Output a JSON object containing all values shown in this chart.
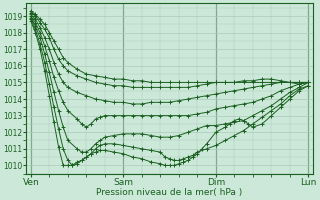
{
  "bg_color": "#cce8d8",
  "grid_color": "#aacabb",
  "line_color": "#1a6020",
  "xlabel": "Pression niveau de la mer( hPa )",
  "xtick_labels": [
    "Ven",
    "Sam",
    "Dim",
    "Lun"
  ],
  "xtick_positions": [
    0.0,
    1.0,
    2.0,
    3.0
  ],
  "ylim": [
    1009.5,
    1019.8
  ],
  "yticks": [
    1010,
    1011,
    1012,
    1013,
    1014,
    1015,
    1016,
    1017,
    1018,
    1019
  ],
  "series": [
    {
      "pts": [
        [
          0,
          1019.3
        ],
        [
          0.05,
          1019.1
        ],
        [
          0.1,
          1018.8
        ],
        [
          0.15,
          1018.5
        ],
        [
          0.2,
          1018.0
        ],
        [
          0.25,
          1017.5
        ],
        [
          0.3,
          1017.0
        ],
        [
          0.35,
          1016.5
        ],
        [
          0.4,
          1016.2
        ],
        [
          0.5,
          1015.8
        ],
        [
          0.6,
          1015.5
        ],
        [
          0.7,
          1015.4
        ],
        [
          0.8,
          1015.3
        ],
        [
          0.9,
          1015.2
        ],
        [
          1.0,
          1015.2
        ],
        [
          1.1,
          1015.1
        ],
        [
          1.2,
          1015.1
        ],
        [
          1.3,
          1015.0
        ],
        [
          1.4,
          1015.0
        ],
        [
          1.5,
          1015.0
        ],
        [
          1.6,
          1015.0
        ],
        [
          1.7,
          1015.0
        ],
        [
          1.8,
          1015.0
        ],
        [
          1.9,
          1015.0
        ],
        [
          2.0,
          1015.0
        ],
        [
          2.1,
          1015.0
        ],
        [
          2.2,
          1015.0
        ],
        [
          2.3,
          1015.1
        ],
        [
          2.4,
          1015.1
        ],
        [
          2.5,
          1015.2
        ],
        [
          2.6,
          1015.2
        ],
        [
          2.7,
          1015.1
        ],
        [
          2.8,
          1015.0
        ],
        [
          2.9,
          1014.9
        ],
        [
          3.0,
          1015.0
        ]
      ]
    },
    {
      "pts": [
        [
          0,
          1019.2
        ],
        [
          0.05,
          1019.0
        ],
        [
          0.1,
          1018.6
        ],
        [
          0.15,
          1018.2
        ],
        [
          0.2,
          1017.7
        ],
        [
          0.25,
          1017.0
        ],
        [
          0.3,
          1016.4
        ],
        [
          0.35,
          1016.0
        ],
        [
          0.4,
          1015.7
        ],
        [
          0.5,
          1015.4
        ],
        [
          0.6,
          1015.2
        ],
        [
          0.7,
          1015.0
        ],
        [
          0.8,
          1014.9
        ],
        [
          0.9,
          1014.8
        ],
        [
          1.0,
          1014.8
        ],
        [
          1.1,
          1014.7
        ],
        [
          1.2,
          1014.7
        ],
        [
          1.3,
          1014.7
        ],
        [
          1.4,
          1014.7
        ],
        [
          1.5,
          1014.7
        ],
        [
          1.6,
          1014.7
        ],
        [
          1.7,
          1014.7
        ],
        [
          1.8,
          1014.8
        ],
        [
          1.9,
          1014.9
        ],
        [
          2.0,
          1015.0
        ],
        [
          2.1,
          1015.0
        ],
        [
          2.2,
          1015.0
        ],
        [
          2.3,
          1015.0
        ],
        [
          2.4,
          1015.0
        ],
        [
          2.5,
          1015.0
        ],
        [
          2.6,
          1015.0
        ],
        [
          2.7,
          1015.0
        ],
        [
          2.8,
          1015.0
        ],
        [
          2.9,
          1015.0
        ],
        [
          3.0,
          1015.0
        ]
      ]
    },
    {
      "pts": [
        [
          0,
          1019.1
        ],
        [
          0.05,
          1018.8
        ],
        [
          0.1,
          1018.3
        ],
        [
          0.15,
          1017.7
        ],
        [
          0.2,
          1017.0
        ],
        [
          0.25,
          1016.2
        ],
        [
          0.3,
          1015.5
        ],
        [
          0.35,
          1015.0
        ],
        [
          0.4,
          1014.7
        ],
        [
          0.5,
          1014.4
        ],
        [
          0.6,
          1014.2
        ],
        [
          0.7,
          1014.0
        ],
        [
          0.8,
          1013.9
        ],
        [
          0.9,
          1013.8
        ],
        [
          1.0,
          1013.8
        ],
        [
          1.1,
          1013.7
        ],
        [
          1.2,
          1013.7
        ],
        [
          1.3,
          1013.8
        ],
        [
          1.4,
          1013.8
        ],
        [
          1.5,
          1013.8
        ],
        [
          1.6,
          1013.9
        ],
        [
          1.7,
          1014.0
        ],
        [
          1.8,
          1014.1
        ],
        [
          1.9,
          1014.2
        ],
        [
          2.0,
          1014.3
        ],
        [
          2.1,
          1014.4
        ],
        [
          2.2,
          1014.5
        ],
        [
          2.3,
          1014.6
        ],
        [
          2.4,
          1014.7
        ],
        [
          2.5,
          1014.8
        ],
        [
          2.6,
          1014.9
        ],
        [
          2.7,
          1015.0
        ],
        [
          2.8,
          1015.0
        ],
        [
          2.9,
          1015.0
        ],
        [
          3.0,
          1015.0
        ]
      ]
    },
    {
      "pts": [
        [
          0,
          1019.0
        ],
        [
          0.05,
          1018.6
        ],
        [
          0.1,
          1018.0
        ],
        [
          0.15,
          1017.2
        ],
        [
          0.2,
          1016.3
        ],
        [
          0.25,
          1015.3
        ],
        [
          0.3,
          1014.5
        ],
        [
          0.35,
          1013.8
        ],
        [
          0.4,
          1013.3
        ],
        [
          0.5,
          1012.8
        ],
        [
          0.55,
          1012.5
        ],
        [
          0.6,
          1012.3
        ],
        [
          0.65,
          1012.5
        ],
        [
          0.7,
          1012.8
        ],
        [
          0.75,
          1012.9
        ],
        [
          0.8,
          1013.0
        ],
        [
          0.9,
          1013.0
        ],
        [
          1.0,
          1013.0
        ],
        [
          1.1,
          1013.0
        ],
        [
          1.2,
          1013.0
        ],
        [
          1.3,
          1013.0
        ],
        [
          1.4,
          1013.0
        ],
        [
          1.5,
          1013.0
        ],
        [
          1.6,
          1013.0
        ],
        [
          1.7,
          1013.0
        ],
        [
          1.8,
          1013.1
        ],
        [
          1.9,
          1013.2
        ],
        [
          2.0,
          1013.4
        ],
        [
          2.1,
          1013.5
        ],
        [
          2.2,
          1013.6
        ],
        [
          2.3,
          1013.7
        ],
        [
          2.4,
          1013.8
        ],
        [
          2.5,
          1014.0
        ],
        [
          2.6,
          1014.2
        ],
        [
          2.7,
          1014.5
        ],
        [
          2.8,
          1014.7
        ],
        [
          2.9,
          1014.9
        ],
        [
          3.0,
          1015.0
        ]
      ]
    },
    {
      "pts": [
        [
          0,
          1018.9
        ],
        [
          0.05,
          1018.4
        ],
        [
          0.1,
          1017.7
        ],
        [
          0.15,
          1016.7
        ],
        [
          0.2,
          1015.6
        ],
        [
          0.25,
          1014.4
        ],
        [
          0.3,
          1013.3
        ],
        [
          0.35,
          1012.3
        ],
        [
          0.4,
          1011.5
        ],
        [
          0.5,
          1011.0
        ],
        [
          0.55,
          1010.8
        ],
        [
          0.6,
          1010.8
        ],
        [
          0.65,
          1011.0
        ],
        [
          0.7,
          1011.3
        ],
        [
          0.75,
          1011.5
        ],
        [
          0.8,
          1011.7
        ],
        [
          0.9,
          1011.8
        ],
        [
          1.0,
          1011.9
        ],
        [
          1.1,
          1011.9
        ],
        [
          1.2,
          1011.9
        ],
        [
          1.3,
          1011.8
        ],
        [
          1.4,
          1011.7
        ],
        [
          1.5,
          1011.7
        ],
        [
          1.6,
          1011.8
        ],
        [
          1.7,
          1012.0
        ],
        [
          1.8,
          1012.2
        ],
        [
          1.9,
          1012.4
        ],
        [
          2.0,
          1012.4
        ],
        [
          2.1,
          1012.5
        ],
        [
          2.2,
          1012.6
        ],
        [
          2.3,
          1012.7
        ],
        [
          2.4,
          1013.0
        ],
        [
          2.5,
          1013.3
        ],
        [
          2.6,
          1013.6
        ],
        [
          2.7,
          1014.0
        ],
        [
          2.8,
          1014.4
        ],
        [
          2.9,
          1014.7
        ],
        [
          3.0,
          1015.0
        ]
      ]
    },
    {
      "pts": [
        [
          0,
          1018.8
        ],
        [
          0.05,
          1018.2
        ],
        [
          0.1,
          1017.3
        ],
        [
          0.15,
          1016.2
        ],
        [
          0.2,
          1014.9
        ],
        [
          0.25,
          1013.5
        ],
        [
          0.3,
          1012.2
        ],
        [
          0.35,
          1011.0
        ],
        [
          0.4,
          1010.3
        ],
        [
          0.45,
          1010.0
        ],
        [
          0.5,
          1010.2
        ],
        [
          0.55,
          1010.3
        ],
        [
          0.6,
          1010.5
        ],
        [
          0.65,
          1010.7
        ],
        [
          0.7,
          1011.0
        ],
        [
          0.75,
          1011.2
        ],
        [
          0.8,
          1011.3
        ],
        [
          0.9,
          1011.3
        ],
        [
          1.0,
          1011.2
        ],
        [
          1.1,
          1011.1
        ],
        [
          1.2,
          1011.0
        ],
        [
          1.3,
          1010.9
        ],
        [
          1.4,
          1010.8
        ],
        [
          1.45,
          1010.5
        ],
        [
          1.5,
          1010.4
        ],
        [
          1.55,
          1010.3
        ],
        [
          1.6,
          1010.3
        ],
        [
          1.65,
          1010.4
        ],
        [
          1.7,
          1010.5
        ],
        [
          1.75,
          1010.6
        ],
        [
          1.8,
          1010.8
        ],
        [
          1.9,
          1011.0
        ],
        [
          2.0,
          1011.2
        ],
        [
          2.1,
          1011.5
        ],
        [
          2.2,
          1011.8
        ],
        [
          2.3,
          1012.1
        ],
        [
          2.4,
          1012.5
        ],
        [
          2.5,
          1012.9
        ],
        [
          2.6,
          1013.3
        ],
        [
          2.7,
          1013.7
        ],
        [
          2.8,
          1014.2
        ],
        [
          2.9,
          1014.6
        ],
        [
          3.0,
          1014.8
        ]
      ]
    },
    {
      "pts": [
        [
          0,
          1018.7
        ],
        [
          0.05,
          1018.0
        ],
        [
          0.1,
          1017.0
        ],
        [
          0.15,
          1015.7
        ],
        [
          0.2,
          1014.2
        ],
        [
          0.25,
          1012.6
        ],
        [
          0.3,
          1011.1
        ],
        [
          0.35,
          1010.0
        ],
        [
          0.4,
          1010.0
        ],
        [
          0.45,
          1010.0
        ],
        [
          0.5,
          1010.1
        ],
        [
          0.55,
          1010.3
        ],
        [
          0.6,
          1010.5
        ],
        [
          0.65,
          1010.7
        ],
        [
          0.7,
          1010.8
        ],
        [
          0.75,
          1010.9
        ],
        [
          0.8,
          1010.9
        ],
        [
          0.9,
          1010.8
        ],
        [
          1.0,
          1010.7
        ],
        [
          1.1,
          1010.5
        ],
        [
          1.2,
          1010.4
        ],
        [
          1.3,
          1010.2
        ],
        [
          1.4,
          1010.1
        ],
        [
          1.45,
          1010.0
        ],
        [
          1.5,
          1010.0
        ],
        [
          1.55,
          1010.0
        ],
        [
          1.6,
          1010.1
        ],
        [
          1.65,
          1010.2
        ],
        [
          1.7,
          1010.3
        ],
        [
          1.75,
          1010.5
        ],
        [
          1.8,
          1010.7
        ],
        [
          1.85,
          1011.0
        ],
        [
          1.9,
          1011.3
        ],
        [
          2.0,
          1012.0
        ],
        [
          2.1,
          1012.3
        ],
        [
          2.15,
          1012.5
        ],
        [
          2.2,
          1012.7
        ],
        [
          2.25,
          1012.8
        ],
        [
          2.3,
          1012.7
        ],
        [
          2.35,
          1012.5
        ],
        [
          2.4,
          1012.3
        ],
        [
          2.5,
          1012.5
        ],
        [
          2.6,
          1013.0
        ],
        [
          2.7,
          1013.5
        ],
        [
          2.8,
          1014.0
        ],
        [
          2.9,
          1014.5
        ],
        [
          3.0,
          1014.8
        ]
      ]
    }
  ]
}
